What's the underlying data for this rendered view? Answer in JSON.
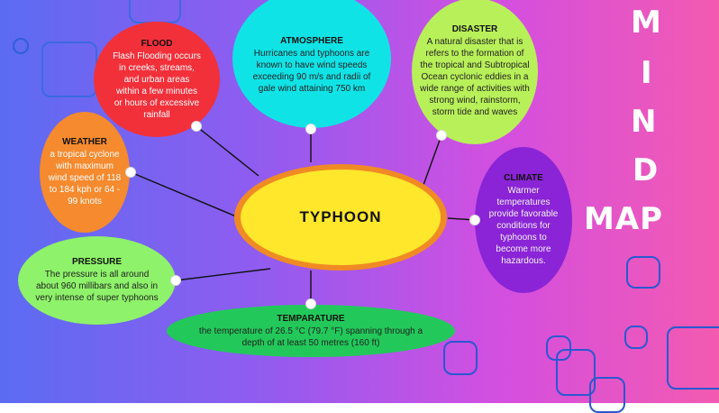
{
  "title_letters": [
    "M",
    "I",
    "N",
    "D",
    "MAP"
  ],
  "center": {
    "label": "TYPHOON"
  },
  "nodes": {
    "atmosphere": {
      "title": "ATMOSPHERE",
      "body": "Hurricanes and typhoons are known to have wind speeds exceeding 90 m/s and radii of gale wind attaining 750 km",
      "color": "#10e3e6"
    },
    "disaster": {
      "title": "DISASTER",
      "body": "A natural disaster that is refers to the formation of the tropical and Subtropical Ocean cyclonic eddies in a wide range of activities with strong wind, rainstorm, storm tide and waves",
      "color": "#b8f05a"
    },
    "flood": {
      "title": "FLOOD",
      "body": "Flash Flooding occurs in creeks, streams, and urban areas within a few minutes or hours of excessive rainfall",
      "color": "#f2303a"
    },
    "weather": {
      "title": "WEATHER",
      "body": "a tropical cyclone with maximum wind speed of 118 to 184 kph or 64 - 99 knots",
      "color": "#f58a2e"
    },
    "climate": {
      "title": "CLIMATE",
      "body": "Warmer temperatures provide favorable conditions for typhoons to become more hazardous.",
      "color": "#8a24d6"
    },
    "pressure": {
      "title": "PRESSURE",
      "body": "The pressure is all around about 960 millibars and also in very intense of super typhoons",
      "color": "#8ef26a"
    },
    "temparature": {
      "title": "TEMPARATURE",
      "body": "the temperature of 26.5 °C (79.7 °F) spanning through a depth of at least 50 metres (160 ft)",
      "color": "#22c95a"
    }
  }
}
